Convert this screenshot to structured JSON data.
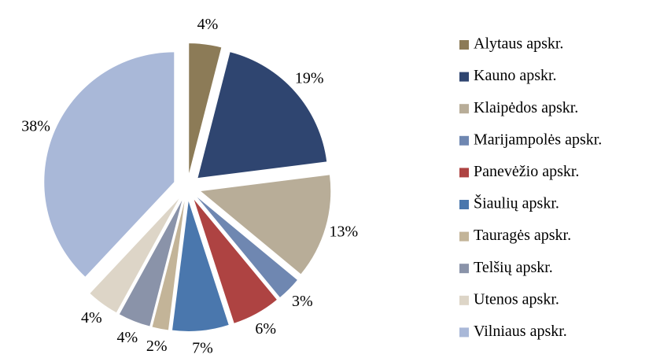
{
  "chart_data": {
    "type": "pie",
    "categories": [
      "Alytaus apskr.",
      "Kauno apskr.",
      "Klaipėdos apskr.",
      "Marijampolės apskr.",
      "Panevėžio apskr.",
      "Šiaulių apskr.",
      "Tauragės apskr.",
      "Telšių apskr.",
      "Utenos apskr.",
      "Vilniaus apskr."
    ],
    "values": [
      4,
      19,
      13,
      3,
      6,
      7,
      2,
      4,
      4,
      38
    ],
    "value_labels": [
      "4%",
      "19%",
      "13%",
      "3%",
      "6%",
      "7%",
      "2%",
      "4%",
      "4%",
      "38%"
    ],
    "colors": [
      "#8c7b57",
      "#2f4570",
      "#b8ad98",
      "#6f87b1",
      "#ae4342",
      "#4a77ad",
      "#c3b498",
      "#8a93a9",
      "#ddd5c7",
      "#a9b8d8"
    ],
    "legend": "right"
  }
}
